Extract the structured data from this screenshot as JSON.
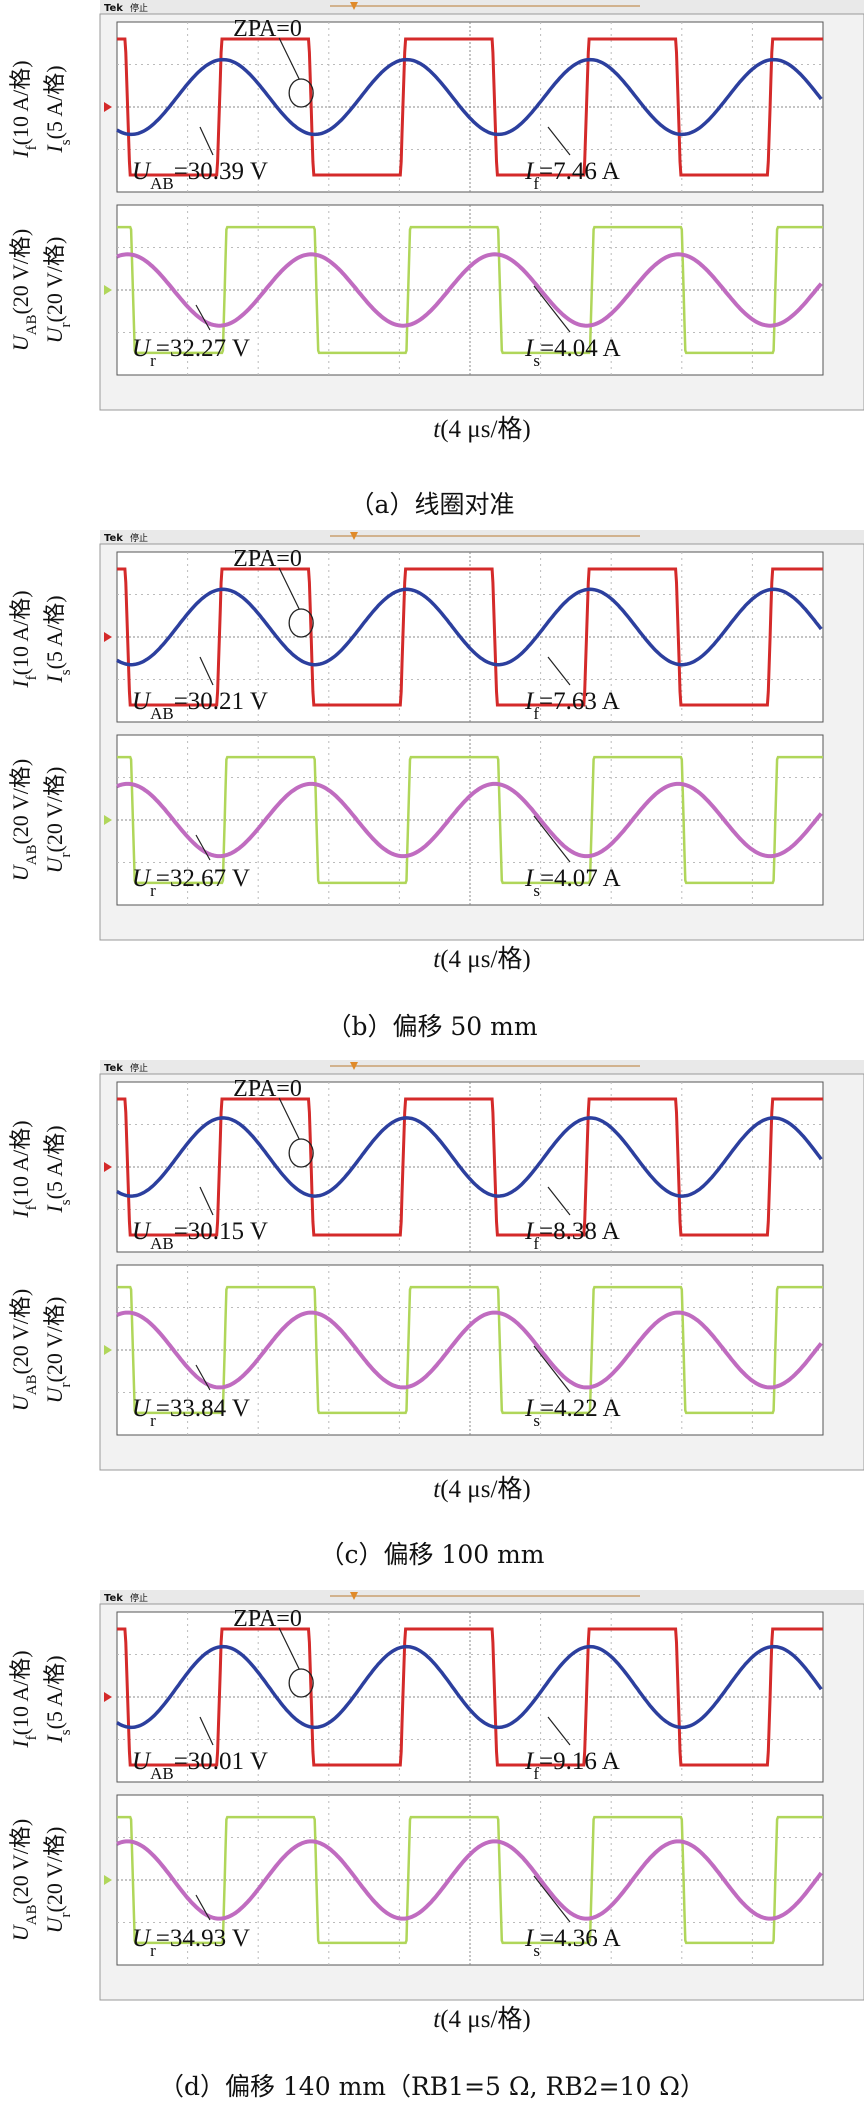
{
  "figure": {
    "tek_logo": "Tek",
    "status": "停止",
    "ylabel_top_outer": "If(10 A/格)",
    "ylabel_top_inner": "Is(5 A/格)",
    "ylabel_bottom_outer": "UAB(20 V/格)",
    "ylabel_bottom_inner": "Ur(20 V/格)",
    "xlabel": "t(4 μs/格)",
    "zpa_label": "ZPA=0",
    "colors": {
      "I_f": "#d42a2a",
      "I_s": "#2c3f9e",
      "U_AB": "#b0d65a",
      "U_r": "#c06cc0"
    },
    "panels": [
      {
        "id": "a",
        "caption": "（a）线圈对准",
        "U_AB": "30.39 V",
        "I_f": "7.46 A",
        "U_r": "32.27 V",
        "I_s": "4.04 A"
      },
      {
        "id": "b",
        "caption": "（b）偏移 50 mm",
        "U_AB": "30.21 V",
        "I_f": "7.63 A",
        "U_r": "32.67 V",
        "I_s": "4.07 A"
      },
      {
        "id": "c",
        "caption": "（c）偏移 100 mm",
        "U_AB": "30.15 V",
        "I_f": "8.38 A",
        "U_r": "33.84 V",
        "I_s": "4.22 A"
      },
      {
        "id": "d",
        "caption": "（d）偏移 140 mm（RB1=5 Ω, RB2=10 Ω）",
        "U_AB": "30.01 V",
        "I_f": "9.16 A",
        "U_r": "34.93 V",
        "I_s": "4.36 A"
      }
    ]
  },
  "chart_data": [
    {
      "type": "line",
      "title": "（a）线圈对准",
      "xlabel": "t(4 μs/格)",
      "grid": true,
      "x_divisions": 10,
      "xlim_us": [
        0,
        40
      ],
      "series": [
        {
          "name": "UAB",
          "axis": "bottom",
          "scale": "20 V/格",
          "shape": "square",
          "period_us": 10.4,
          "amplitude_V": 30.39
        },
        {
          "name": "If",
          "axis": "top",
          "scale": "10 A/格",
          "shape": "square",
          "period_us": 10.4,
          "amplitude_A": 7.46
        },
        {
          "name": "Ur",
          "axis": "bottom",
          "scale": "20 V/格",
          "shape": "sine",
          "period_us": 10.4,
          "amplitude_V": 32.27
        },
        {
          "name": "Is",
          "axis": "top",
          "scale": "5 A/格",
          "shape": "sine",
          "period_us": 10.4,
          "amplitude_A": 4.04
        }
      ]
    },
    {
      "type": "line",
      "title": "（b）偏移 50 mm",
      "xlabel": "t(4 μs/格)",
      "grid": true,
      "x_divisions": 10,
      "xlim_us": [
        0,
        40
      ],
      "series": [
        {
          "name": "UAB",
          "axis": "bottom",
          "scale": "20 V/格",
          "shape": "square",
          "period_us": 10.4,
          "amplitude_V": 30.21
        },
        {
          "name": "If",
          "axis": "top",
          "scale": "10 A/格",
          "shape": "square",
          "period_us": 10.4,
          "amplitude_A": 7.63
        },
        {
          "name": "Ur",
          "axis": "bottom",
          "scale": "20 V/格",
          "shape": "sine",
          "period_us": 10.4,
          "amplitude_V": 32.67
        },
        {
          "name": "Is",
          "axis": "top",
          "scale": "5 A/格",
          "shape": "sine",
          "period_us": 10.4,
          "amplitude_A": 4.07
        }
      ]
    },
    {
      "type": "line",
      "title": "（c）偏移 100 mm",
      "xlabel": "t(4 μs/格)",
      "grid": true,
      "x_divisions": 10,
      "xlim_us": [
        0,
        40
      ],
      "series": [
        {
          "name": "UAB",
          "axis": "bottom",
          "scale": "20 V/格",
          "shape": "square",
          "period_us": 10.4,
          "amplitude_V": 30.15
        },
        {
          "name": "If",
          "axis": "top",
          "scale": "10 A/格",
          "shape": "square",
          "period_us": 10.4,
          "amplitude_A": 8.38
        },
        {
          "name": "Ur",
          "axis": "bottom",
          "scale": "20 V/格",
          "shape": "sine",
          "period_us": 10.4,
          "amplitude_V": 33.84
        },
        {
          "name": "Is",
          "axis": "top",
          "scale": "5 A/格",
          "shape": "sine",
          "period_us": 10.4,
          "amplitude_A": 4.22
        }
      ]
    },
    {
      "type": "line",
      "title": "（d）偏移 140 mm（RB1=5 Ω, RB2=10 Ω）",
      "xlabel": "t(4 μs/格)",
      "grid": true,
      "x_divisions": 10,
      "xlim_us": [
        0,
        40
      ],
      "series": [
        {
          "name": "UAB",
          "axis": "bottom",
          "scale": "20 V/格",
          "shape": "square",
          "period_us": 10.4,
          "amplitude_V": 30.01
        },
        {
          "name": "If",
          "axis": "top",
          "scale": "10 A/格",
          "shape": "square",
          "period_us": 10.4,
          "amplitude_A": 9.16
        },
        {
          "name": "Ur",
          "axis": "bottom",
          "scale": "20 V/格",
          "shape": "sine",
          "period_us": 10.4,
          "amplitude_V": 34.93
        },
        {
          "name": "Is",
          "axis": "top",
          "scale": "5 A/格",
          "shape": "sine",
          "period_us": 10.4,
          "amplitude_A": 4.36
        }
      ]
    }
  ]
}
